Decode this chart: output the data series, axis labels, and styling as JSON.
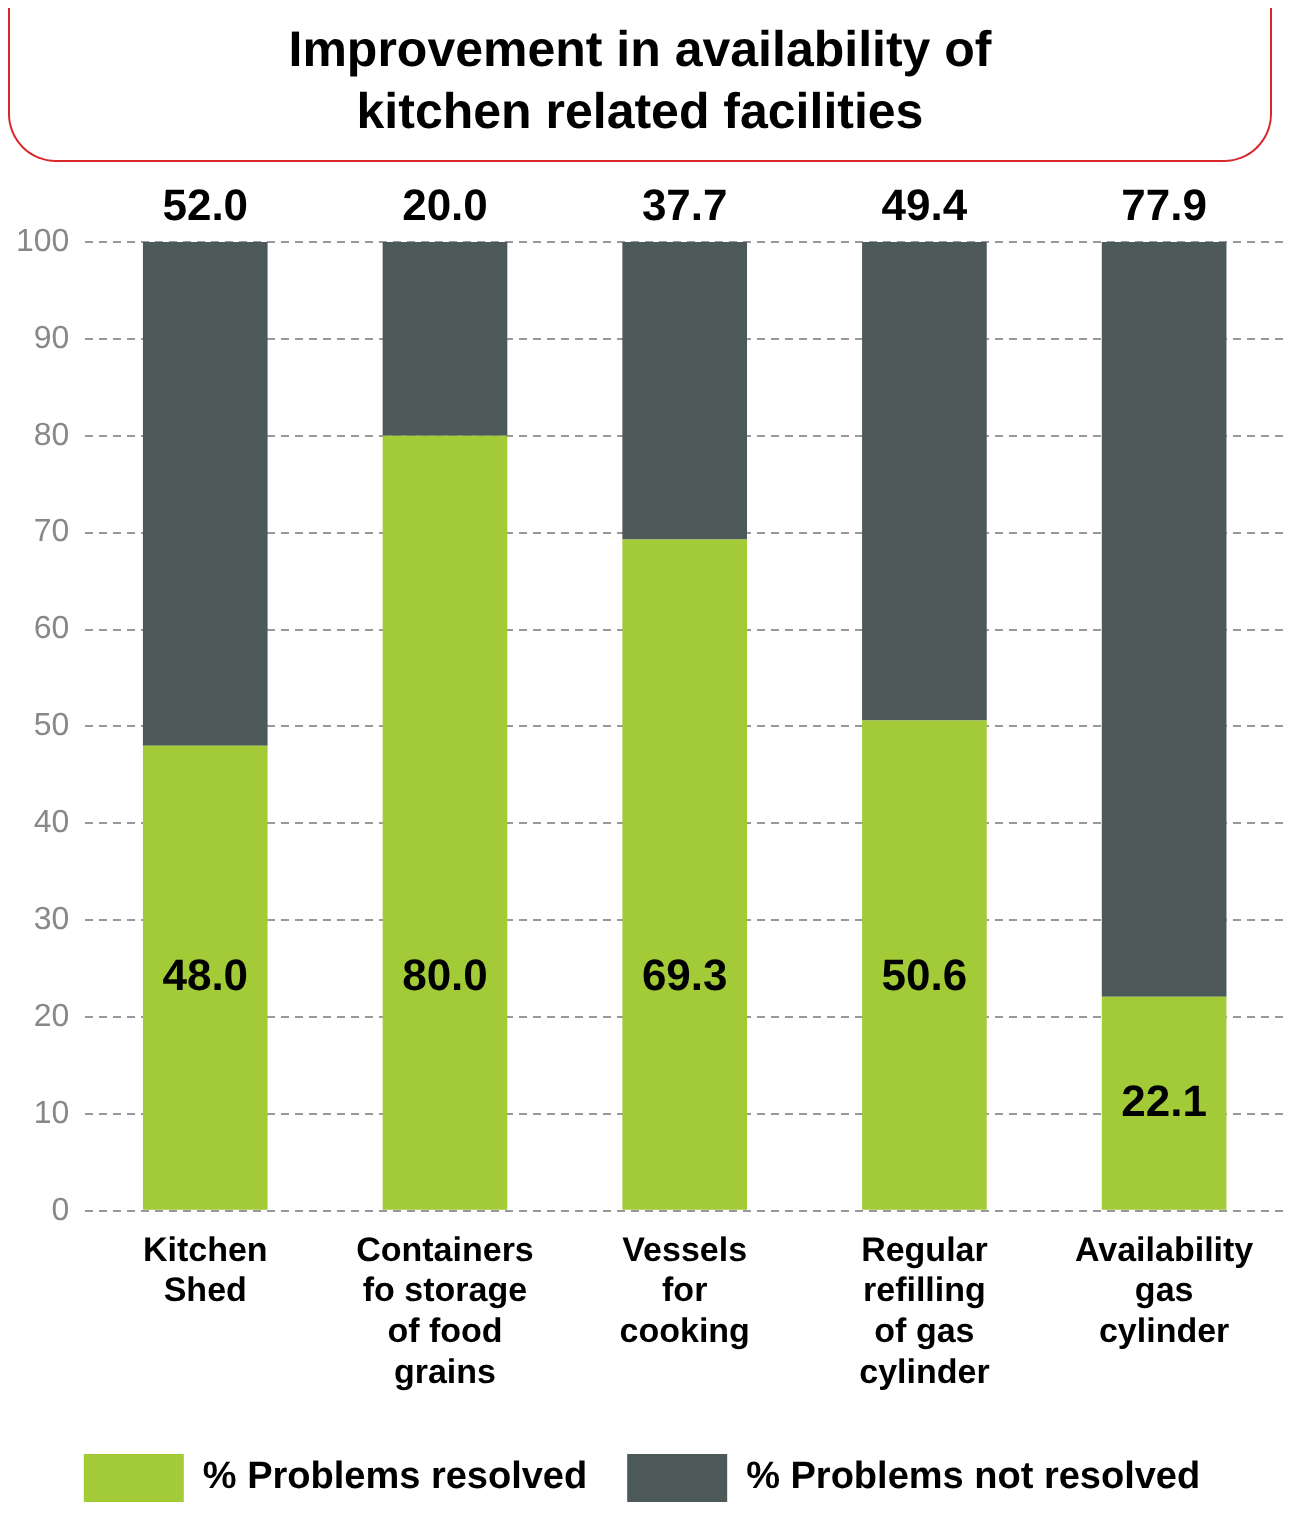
{
  "chart_data": {
    "type": "bar",
    "title": "Improvement in availability of kitchen related facilities",
    "categories": [
      "Kitchen Shed",
      "Containers fo storage of food grains",
      "Vessels for cooking",
      "Regular refilling of gas cylinder",
      "Availability gas cylinder"
    ],
    "stacked": true,
    "ylim": [
      0,
      100
    ],
    "yticks": [
      0,
      10,
      20,
      30,
      40,
      50,
      60,
      70,
      80,
      90,
      100
    ],
    "grid": "y",
    "legend": "bottom",
    "series": [
      {
        "name": "% Problems resolved",
        "color": "#a3cb38",
        "values": [
          48.0,
          80.0,
          69.3,
          50.6,
          22.1
        ],
        "value_labels": [
          "48.0",
          "80.0",
          "69.3",
          "50.6",
          "22.1"
        ]
      },
      {
        "name": "% Problems not resolved",
        "color": "#4d5859",
        "values": [
          52.0,
          20.0,
          30.7,
          49.4,
          77.9
        ],
        "value_labels": [
          "52.0",
          "20.0",
          null,
          "49.4",
          "77.9"
        ]
      }
    ],
    "annotations": [
      {
        "text": "37.7",
        "x": "Vessels for cooking",
        "y": 100
      }
    ]
  }
}
